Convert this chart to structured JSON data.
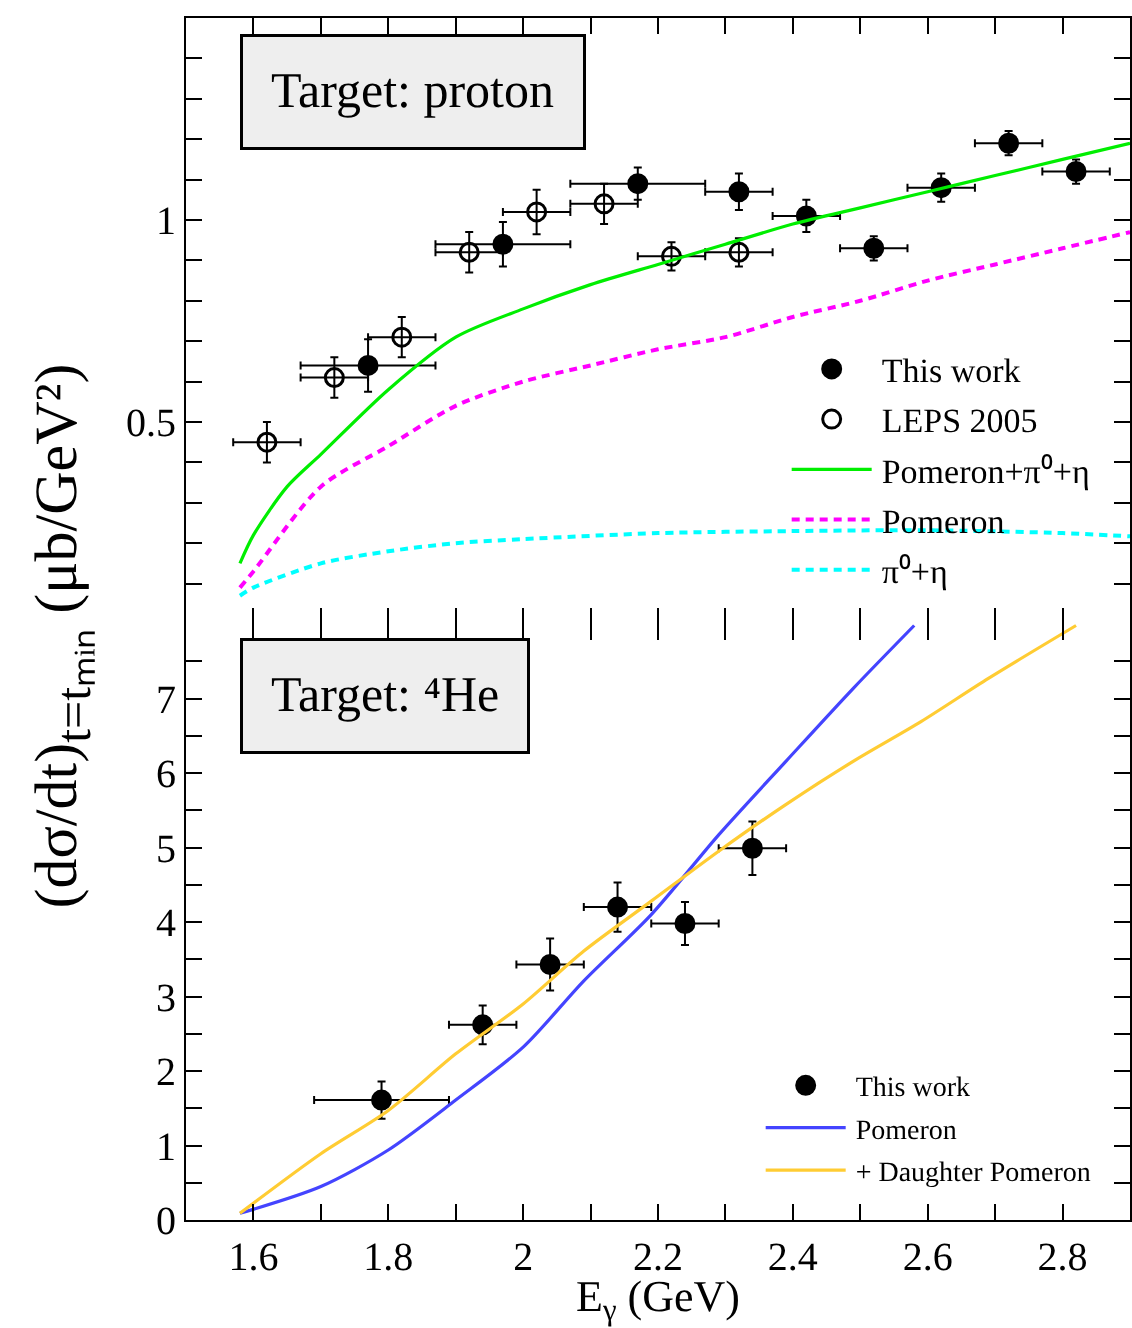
{
  "chart_data": [
    {
      "type": "scatter",
      "title": "Target: proton",
      "ylabel": "(dσ/dt)$_{t=tₘᵢₙ}$ (μb/GeV²)",
      "xlim": [
        1.5,
        2.9
      ],
      "ylim": [
        0,
        1.5
      ],
      "tick_labels": "y",
      "legend": "bottom right",
      "xticks": [
        1.6,
        {
          "value": 1.7,
          "label": null
        },
        1.8,
        {
          "value": 1.9,
          "label": null
        },
        2,
        {
          "value": 2.1,
          "label": null
        },
        2.2,
        {
          "value": 2.3,
          "label": null
        },
        2.4,
        {
          "value": 2.5,
          "label": null
        },
        2.6,
        {
          "value": 2.7,
          "label": null
        },
        2.8
      ],
      "yticks": [
        {
          "value": 0.1,
          "label": null
        },
        {
          "value": 0.2,
          "label": null
        },
        {
          "value": 0.3,
          "label": null
        },
        {
          "value": 0.4,
          "label": null
        },
        0.5,
        {
          "value": 0.6,
          "label": null
        },
        {
          "value": 0.7,
          "label": null
        },
        {
          "value": 0.8,
          "label": null
        },
        {
          "value": 0.9,
          "label": null
        },
        1,
        {
          "value": 1.1,
          "label": null
        },
        {
          "value": 1.2,
          "label": null
        },
        {
          "value": 1.3,
          "label": null
        },
        {
          "value": 1.4,
          "label": null
        }
      ],
      "series": [
        {
          "name": "This work",
          "marker": "circle",
          "color": "#000000",
          "x": [
            1.77,
            1.97,
            2.17,
            2.32,
            2.42,
            2.52,
            2.62,
            2.72,
            2.82
          ],
          "values": [
            0.64,
            0.94,
            1.09,
            1.07,
            1.01,
            0.93,
            1.08,
            1.19,
            1.12
          ],
          "errors": [
            0.065,
            0.055,
            0.04,
            0.045,
            0.04,
            0.03,
            0.035,
            0.03,
            0.03
          ],
          "xerrors": [
            0.1,
            0.1,
            0.1,
            0.05,
            0.05,
            0.05,
            0.05,
            0.05,
            0.05
          ]
        },
        {
          "name": "LEPS 2005",
          "marker": "circle-open",
          "color": "#000000",
          "x": [
            1.62,
            1.72,
            1.82,
            1.92,
            2.02,
            2.12,
            2.22,
            2.32
          ],
          "values": [
            0.45,
            0.61,
            0.71,
            0.92,
            1.02,
            1.04,
            0.91,
            0.92
          ],
          "errors": [
            0.05,
            0.05,
            0.05,
            0.05,
            0.055,
            0.05,
            0.035,
            0.035
          ],
          "xerrors": [
            0.05,
            0.05,
            0.05,
            0.05,
            0.05,
            0.05,
            0.05,
            0.05
          ]
        },
        {
          "name": "Pomeron+π⁰+η",
          "type": "line",
          "line_style": "solid",
          "color": "#00ee00",
          "x": [
            1.58,
            1.6,
            1.65,
            1.7,
            1.8,
            1.9,
            2.0,
            2.1,
            2.2,
            2.3,
            2.4,
            2.5,
            2.6,
            2.7,
            2.8,
            2.9
          ],
          "values": [
            0.15,
            0.22,
            0.34,
            0.42,
            0.58,
            0.71,
            0.78,
            0.84,
            0.89,
            0.94,
            0.99,
            1.03,
            1.07,
            1.11,
            1.15,
            1.19
          ]
        },
        {
          "name": "Pomeron",
          "type": "line",
          "line_style": "dashed",
          "color": "#ff00ff",
          "x": [
            1.58,
            1.6,
            1.7,
            1.8,
            1.9,
            2.0,
            2.1,
            2.2,
            2.3,
            2.4,
            2.5,
            2.6,
            2.7,
            2.8,
            2.9
          ],
          "values": [
            0.09,
            0.13,
            0.34,
            0.44,
            0.54,
            0.6,
            0.64,
            0.68,
            0.71,
            0.76,
            0.8,
            0.85,
            0.89,
            0.93,
            0.97
          ]
        },
        {
          "name": "π⁰+η",
          "type": "line",
          "line_style": "dashed",
          "color": "#00ffff",
          "x": [
            1.58,
            1.6,
            1.7,
            1.8,
            1.9,
            2.0,
            2.2,
            2.4,
            2.6,
            2.8,
            2.9
          ],
          "values": [
            0.07,
            0.09,
            0.15,
            0.18,
            0.2,
            0.21,
            0.225,
            0.23,
            0.232,
            0.225,
            0.217
          ]
        }
      ]
    },
    {
      "type": "scatter",
      "title": "Target: ⁴He",
      "xlabel": "E$_{γ}$ (GeV)",
      "xlim": [
        1.5,
        2.9
      ],
      "ylim": [
        0,
        8
      ],
      "legend": "bottom right",
      "xticks": [
        1.6,
        {
          "value": 1.7,
          "label": null
        },
        1.8,
        {
          "value": 1.9,
          "label": null
        },
        2,
        {
          "value": 2.1,
          "label": null
        },
        2.2,
        {
          "value": 2.3,
          "label": null
        },
        2.4,
        {
          "value": 2.5,
          "label": null
        },
        2.6,
        {
          "value": 2.7,
          "label": null
        },
        2.8
      ],
      "yticks": [
        0,
        {
          "value": 0.5,
          "label": null
        },
        1,
        {
          "value": 1.5,
          "label": null
        },
        2,
        {
          "value": 2.5,
          "label": null
        },
        3,
        {
          "value": 3.5,
          "label": null
        },
        4,
        {
          "value": 4.5,
          "label": null
        },
        5,
        {
          "value": 5.5,
          "label": null
        },
        6,
        {
          "value": 6.5,
          "label": null
        },
        7,
        {
          "value": 7.5,
          "label": null
        }
      ],
      "series": [
        {
          "name": "This work",
          "marker": "circle",
          "color": "#000000",
          "x": [
            1.79,
            1.94,
            2.04,
            2.14,
            2.24,
            2.34
          ],
          "values": [
            1.61,
            2.62,
            3.43,
            4.2,
            3.98,
            4.99
          ],
          "errors": [
            0.25,
            0.26,
            0.35,
            0.33,
            0.29,
            0.36
          ],
          "xerrors": [
            0.1,
            0.05,
            0.05,
            0.05,
            0.05,
            0.05
          ]
        },
        {
          "name": "Pomeron",
          "type": "line",
          "line_style": "solid",
          "color": "#4444ff",
          "x": [
            1.58,
            1.7,
            1.8,
            1.9,
            2.0,
            2.09,
            2.19,
            2.29,
            2.39,
            2.49,
            2.58
          ],
          "values": [
            0.09,
            0.45,
            0.94,
            1.61,
            2.32,
            3.21,
            4.1,
            5.17,
            6.16,
            7.14,
            7.98
          ]
        },
        {
          "name": "+ Daughter Pomeron",
          "type": "line",
          "line_style": "solid",
          "color": "#ffcc33",
          "x": [
            1.58,
            1.7,
            1.8,
            1.9,
            2.0,
            2.09,
            2.19,
            2.29,
            2.39,
            2.49,
            2.59,
            2.69,
            2.82
          ],
          "values": [
            0.09,
            0.89,
            1.47,
            2.23,
            2.9,
            3.61,
            4.28,
            4.95,
            5.58,
            6.16,
            6.69,
            7.27,
            7.98
          ]
        }
      ]
    }
  ]
}
